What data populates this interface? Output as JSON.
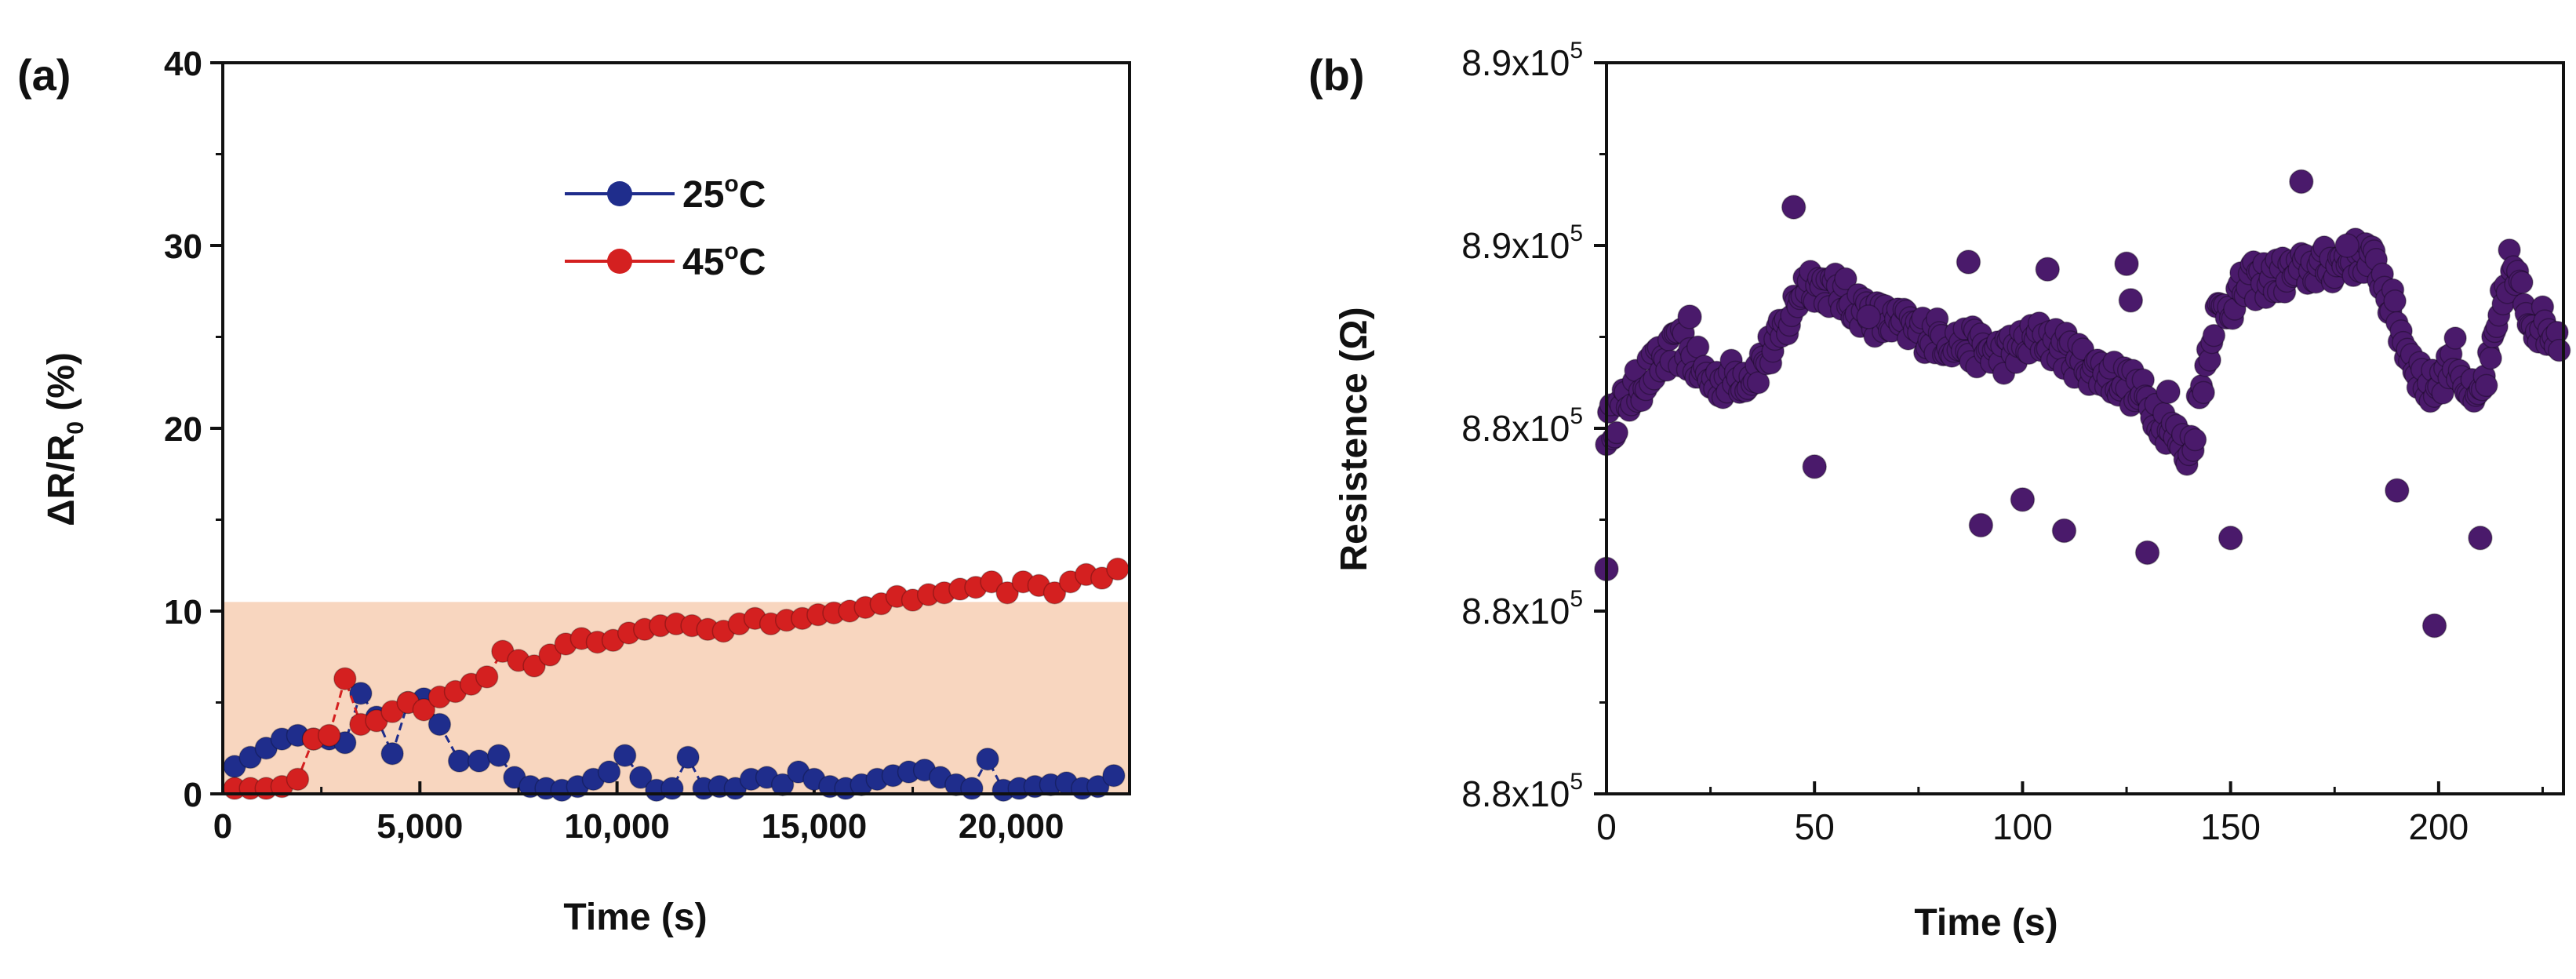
{
  "chart_data": [
    {
      "panel_label": "(a)",
      "type": "line",
      "xlabel": "Time (s)",
      "ylabel_main": "ΔR/R",
      "ylabel_sub": "0",
      "ylabel_unit": " (%)",
      "xlim": [
        0,
        23000
      ],
      "ylim": [
        0,
        40
      ],
      "x_ticks": [
        0,
        5000,
        10000,
        15000,
        20000
      ],
      "x_tick_labels": [
        "0",
        "5,000",
        "10,000",
        "15,000",
        "20,000"
      ],
      "y_ticks": [
        0,
        10,
        20,
        30,
        40
      ],
      "y_tick_labels": [
        "0",
        "10",
        "20",
        "30",
        "40"
      ],
      "shaded_band": {
        "y_from": 0,
        "y_to": 10.5,
        "color": "#f8d6bf"
      },
      "legend_position": "upper-center",
      "series": [
        {
          "name": "25°C",
          "label_main": "25",
          "label_sup": "o",
          "label_end": "C",
          "color": "#1f2d8c",
          "x": [
            300,
            700,
            1100,
            1500,
            1900,
            2300,
            2700,
            3100,
            3500,
            3900,
            4300,
            4700,
            5100,
            5500,
            6000,
            6500,
            7000,
            7400,
            7800,
            8200,
            8600,
            9000,
            9400,
            9800,
            10200,
            10600,
            11000,
            11400,
            11800,
            12200,
            12600,
            13000,
            13400,
            13800,
            14200,
            14600,
            15000,
            15400,
            15800,
            16200,
            16600,
            17000,
            17400,
            17800,
            18200,
            18600,
            19000,
            19400,
            19800,
            20200,
            20600,
            21000,
            21400,
            21800,
            22200,
            22600
          ],
          "values": [
            1.5,
            2.0,
            2.5,
            3.0,
            3.2,
            3.0,
            3.0,
            2.8,
            5.5,
            4.2,
            2.2,
            5.0,
            5.2,
            3.8,
            1.8,
            1.8,
            2.1,
            0.9,
            0.4,
            0.3,
            0.2,
            0.4,
            0.8,
            1.2,
            2.1,
            0.9,
            0.2,
            0.3,
            2.0,
            0.3,
            0.4,
            0.3,
            0.8,
            0.9,
            0.5,
            1.2,
            0.8,
            0.4,
            0.3,
            0.5,
            0.8,
            1.0,
            1.2,
            1.3,
            0.9,
            0.5,
            0.3,
            1.9,
            0.2,
            0.3,
            0.4,
            0.5,
            0.6,
            0.3,
            0.4,
            1.0
          ]
        },
        {
          "name": "45°C",
          "label_main": "45",
          "label_sup": "o",
          "label_end": "C",
          "color": "#d42020",
          "x": [
            300,
            700,
            1100,
            1500,
            1900,
            2300,
            2700,
            3100,
            3500,
            3900,
            4300,
            4700,
            5100,
            5500,
            5900,
            6300,
            6700,
            7100,
            7500,
            7900,
            8300,
            8700,
            9100,
            9500,
            9900,
            10300,
            10700,
            11100,
            11500,
            11900,
            12300,
            12700,
            13100,
            13500,
            13900,
            14300,
            14700,
            15100,
            15500,
            15900,
            16300,
            16700,
            17100,
            17500,
            17900,
            18300,
            18700,
            19100,
            19500,
            19900,
            20300,
            20700,
            21100,
            21500,
            21900,
            22300,
            22700
          ],
          "values": [
            0.3,
            0.3,
            0.3,
            0.4,
            0.8,
            3.0,
            3.2,
            6.3,
            3.8,
            4.0,
            4.5,
            5.0,
            4.6,
            5.3,
            5.6,
            6.0,
            6.4,
            7.8,
            7.3,
            7.0,
            7.6,
            8.2,
            8.5,
            8.3,
            8.4,
            8.8,
            9.0,
            9.2,
            9.3,
            9.2,
            9.0,
            8.9,
            9.3,
            9.6,
            9.3,
            9.5,
            9.6,
            9.8,
            9.9,
            10.0,
            10.2,
            10.4,
            10.8,
            10.6,
            10.9,
            11.0,
            11.2,
            11.3,
            11.6,
            11.0,
            11.6,
            11.4,
            11.0,
            11.6,
            12.0,
            11.8,
            12.3
          ]
        }
      ]
    },
    {
      "panel_label": "(b)",
      "type": "scatter",
      "xlabel": "Time (s)",
      "ylabel": "Resistence (Ω)",
      "xlim": [
        0,
        230
      ],
      "ylim": [
        0,
        4
      ],
      "x_ticks": [
        0,
        50,
        100,
        150,
        200
      ],
      "x_tick_labels": [
        "0",
        "50",
        "100",
        "150",
        "200"
      ],
      "y_ticks": [
        0,
        1,
        2,
        3,
        4
      ],
      "y_tick_labels": [
        "8.8x10",
        "8.8x10",
        "8.8x10",
        "8.9x10",
        "8.9x10"
      ],
      "y_tick_exponent": "5",
      "color": "#4a1a6b",
      "outliers_x": [
        0,
        20,
        45,
        50,
        63,
        87,
        90,
        100,
        106,
        110,
        125,
        126,
        130,
        135,
        150,
        167,
        178,
        190,
        199,
        210
      ],
      "outliers_y": [
        1.23,
        2.61,
        3.21,
        1.79,
        2.61,
        2.91,
        1.47,
        1.61,
        2.87,
        1.44,
        2.9,
        2.7,
        1.32,
        2.2,
        1.4,
        3.35,
        3.0,
        1.66,
        0.92,
        1.4
      ]
    }
  ]
}
